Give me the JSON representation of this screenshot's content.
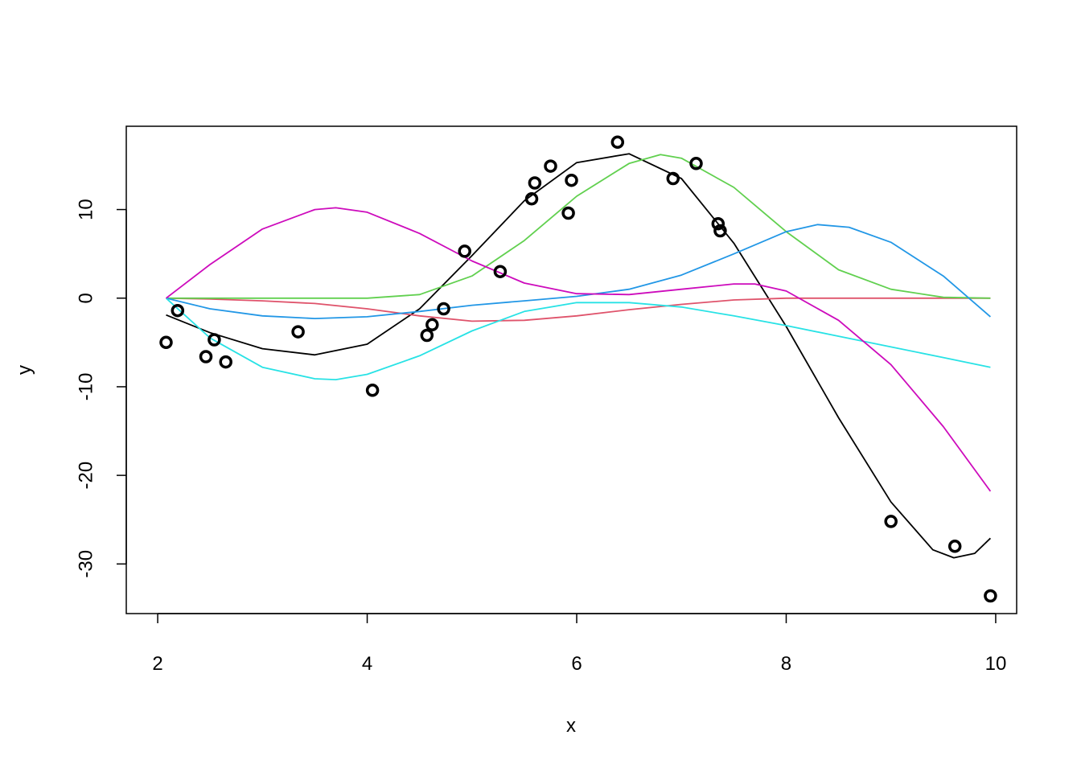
{
  "chart_data": {
    "type": "scatter",
    "title": "",
    "xlabel": "x",
    "ylabel": "y",
    "xlim": [
      1.7,
      10.2
    ],
    "ylim": [
      -35.6,
      19.4
    ],
    "x_ticks": [
      2,
      4,
      6,
      8,
      10
    ],
    "x_tick_labels": [
      "2",
      "4",
      "6",
      "8",
      "10"
    ],
    "y_ticks": [
      -30,
      -20,
      -10,
      0,
      10
    ],
    "y_tick_labels": [
      "-30",
      "-20",
      "-10",
      "0",
      "10"
    ],
    "grid": false,
    "legend": "none",
    "points": {
      "color": "#000000",
      "x": [
        2.08,
        2.19,
        2.46,
        2.54,
        2.65,
        3.34,
        4.05,
        4.57,
        4.62,
        4.73,
        4.93,
        5.27,
        5.57,
        5.6,
        5.75,
        5.92,
        5.95,
        6.39,
        6.92,
        7.14,
        7.35,
        7.37,
        9.0,
        9.61,
        9.95
      ],
      "y": [
        -5.0,
        -1.4,
        -6.6,
        -4.7,
        -7.2,
        -3.8,
        -10.4,
        -4.2,
        -3.0,
        -1.2,
        5.3,
        3.0,
        11.2,
        13.0,
        14.9,
        9.6,
        13.3,
        17.6,
        13.5,
        15.2,
        8.4,
        7.6,
        -25.2,
        -28.0,
        -33.6
      ]
    },
    "series": [
      {
        "color": "#000000",
        "x": [
          2.08,
          2.5,
          3.0,
          3.5,
          4.0,
          4.5,
          5.0,
          5.5,
          6.0,
          6.5,
          7.0,
          7.5,
          8.0,
          8.5,
          9.0,
          9.4,
          9.6,
          9.8,
          9.95
        ],
        "y": [
          -1.9,
          -3.9,
          -5.7,
          -6.4,
          -5.2,
          -1.2,
          4.8,
          11.0,
          15.3,
          16.3,
          13.5,
          6.2,
          -3.2,
          -13.5,
          -23.0,
          -28.4,
          -29.3,
          -28.8,
          -27.1
        ]
      },
      {
        "color": "#DF536B",
        "x": [
          2.08,
          2.5,
          3.0,
          3.5,
          4.0,
          4.5,
          5.0,
          5.5,
          6.0,
          6.5,
          7.0,
          7.5,
          8.0,
          8.5,
          9.0,
          9.5,
          9.95
        ],
        "y": [
          0.0,
          -0.1,
          -0.3,
          -0.6,
          -1.2,
          -2.0,
          -2.6,
          -2.5,
          -2.0,
          -1.3,
          -0.7,
          -0.2,
          0.0,
          0.0,
          0.0,
          0.0,
          0.0
        ]
      },
      {
        "color": "#61D04F",
        "x": [
          2.08,
          3.0,
          4.0,
          4.5,
          5.0,
          5.5,
          6.0,
          6.5,
          6.8,
          7.0,
          7.5,
          8.0,
          8.5,
          9.0,
          9.5,
          9.95
        ],
        "y": [
          0.0,
          0.0,
          0.0,
          0.4,
          2.5,
          6.5,
          11.5,
          15.2,
          16.2,
          15.8,
          12.5,
          7.5,
          3.2,
          1.0,
          0.1,
          0.0
        ]
      },
      {
        "color": "#2297E6",
        "x": [
          2.08,
          2.5,
          3.0,
          3.5,
          4.0,
          4.5,
          5.0,
          5.5,
          6.0,
          6.5,
          7.0,
          7.5,
          8.0,
          8.3,
          8.6,
          9.0,
          9.5,
          9.95
        ],
        "y": [
          0.0,
          -1.2,
          -2.0,
          -2.3,
          -2.1,
          -1.5,
          -0.8,
          -0.3,
          0.2,
          1.0,
          2.6,
          5.0,
          7.5,
          8.3,
          8.0,
          6.3,
          2.5,
          -2.1
        ]
      },
      {
        "color": "#28E2E5",
        "x": [
          2.08,
          2.5,
          3.0,
          3.5,
          3.7,
          4.0,
          4.5,
          5.0,
          5.5,
          6.0,
          6.5,
          7.0,
          7.5,
          8.0,
          8.5,
          9.0,
          9.5,
          9.95
        ],
        "y": [
          0.0,
          -4.5,
          -7.8,
          -9.1,
          -9.2,
          -8.6,
          -6.5,
          -3.7,
          -1.5,
          -0.5,
          -0.5,
          -1.0,
          -2.0,
          -3.1,
          -4.3,
          -5.5,
          -6.7,
          -7.8
        ]
      },
      {
        "color": "#CD0BBC",
        "x": [
          2.08,
          2.5,
          3.0,
          3.5,
          3.7,
          4.0,
          4.5,
          5.0,
          5.5,
          6.0,
          6.5,
          7.0,
          7.5,
          7.7,
          8.0,
          8.5,
          9.0,
          9.5,
          9.95
        ],
        "y": [
          0.0,
          3.8,
          7.8,
          10.0,
          10.2,
          9.7,
          7.3,
          4.2,
          1.7,
          0.5,
          0.4,
          1.0,
          1.6,
          1.6,
          0.8,
          -2.5,
          -7.5,
          -14.5,
          -21.8
        ]
      }
    ]
  }
}
